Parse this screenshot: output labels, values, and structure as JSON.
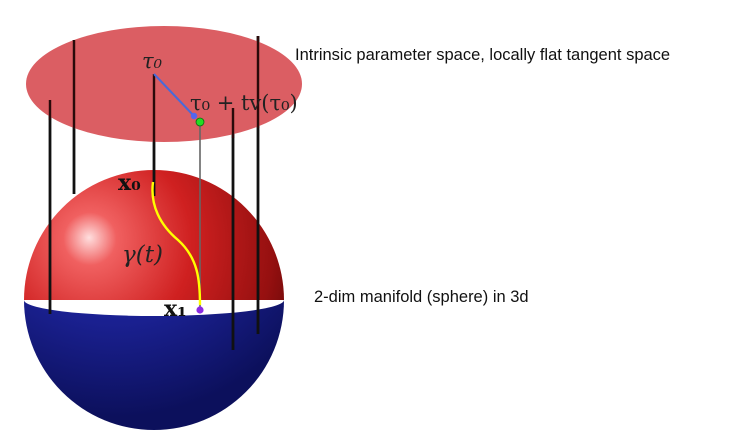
{
  "labels": {
    "tau0": "τ₀",
    "tau_expr": "τ₀ + tv(τ₀)",
    "x0": "x₀",
    "x1": "x₁",
    "gamma": "γ(t)"
  },
  "captions": {
    "parameter_space": "Intrinsic parameter space,  locally flat tangent space",
    "manifold": "2-dim manifold (sphere) in 3d"
  },
  "colors": {
    "disk": "#d9555b",
    "sphere_upper": "#cc1f1f",
    "sphere_lower": "#1f27a8",
    "curve": "#ffff00",
    "vector": "#4a6ad9",
    "point_green": "#22dd22",
    "point_blue": "#5566ee",
    "point_purple": "#8a2be2"
  }
}
